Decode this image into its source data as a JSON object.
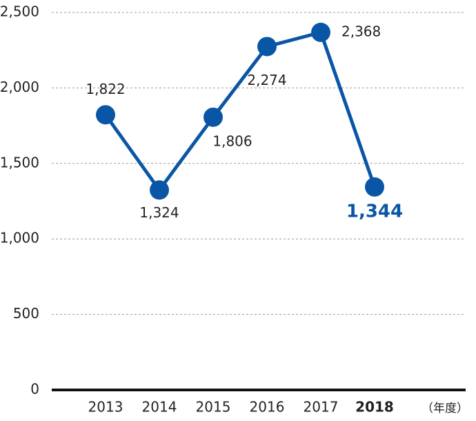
{
  "chart_data": {
    "type": "line",
    "categories": [
      "2013",
      "2014",
      "2015",
      "2016",
      "2017",
      "2018"
    ],
    "series": [
      {
        "color": "#0a56a6",
        "values": [
          1822,
          1324,
          1806,
          2274,
          2368,
          1344
        ],
        "value_labels": [
          "1,822",
          "1,324",
          "1,806",
          "2,274",
          "2,368",
          "1,344"
        ]
      }
    ],
    "ylim": [
      0,
      2500
    ],
    "yticks": [
      0,
      500,
      {
        "value": 1000,
        "label": "1,000"
      },
      {
        "value": 1500,
        "label": "1,500"
      },
      {
        "value": 2000,
        "label": "2,000"
      },
      {
        "value": 2500,
        "label": "2,500"
      }
    ],
    "grid": true,
    "x_unit_label": "（年度）"
  }
}
